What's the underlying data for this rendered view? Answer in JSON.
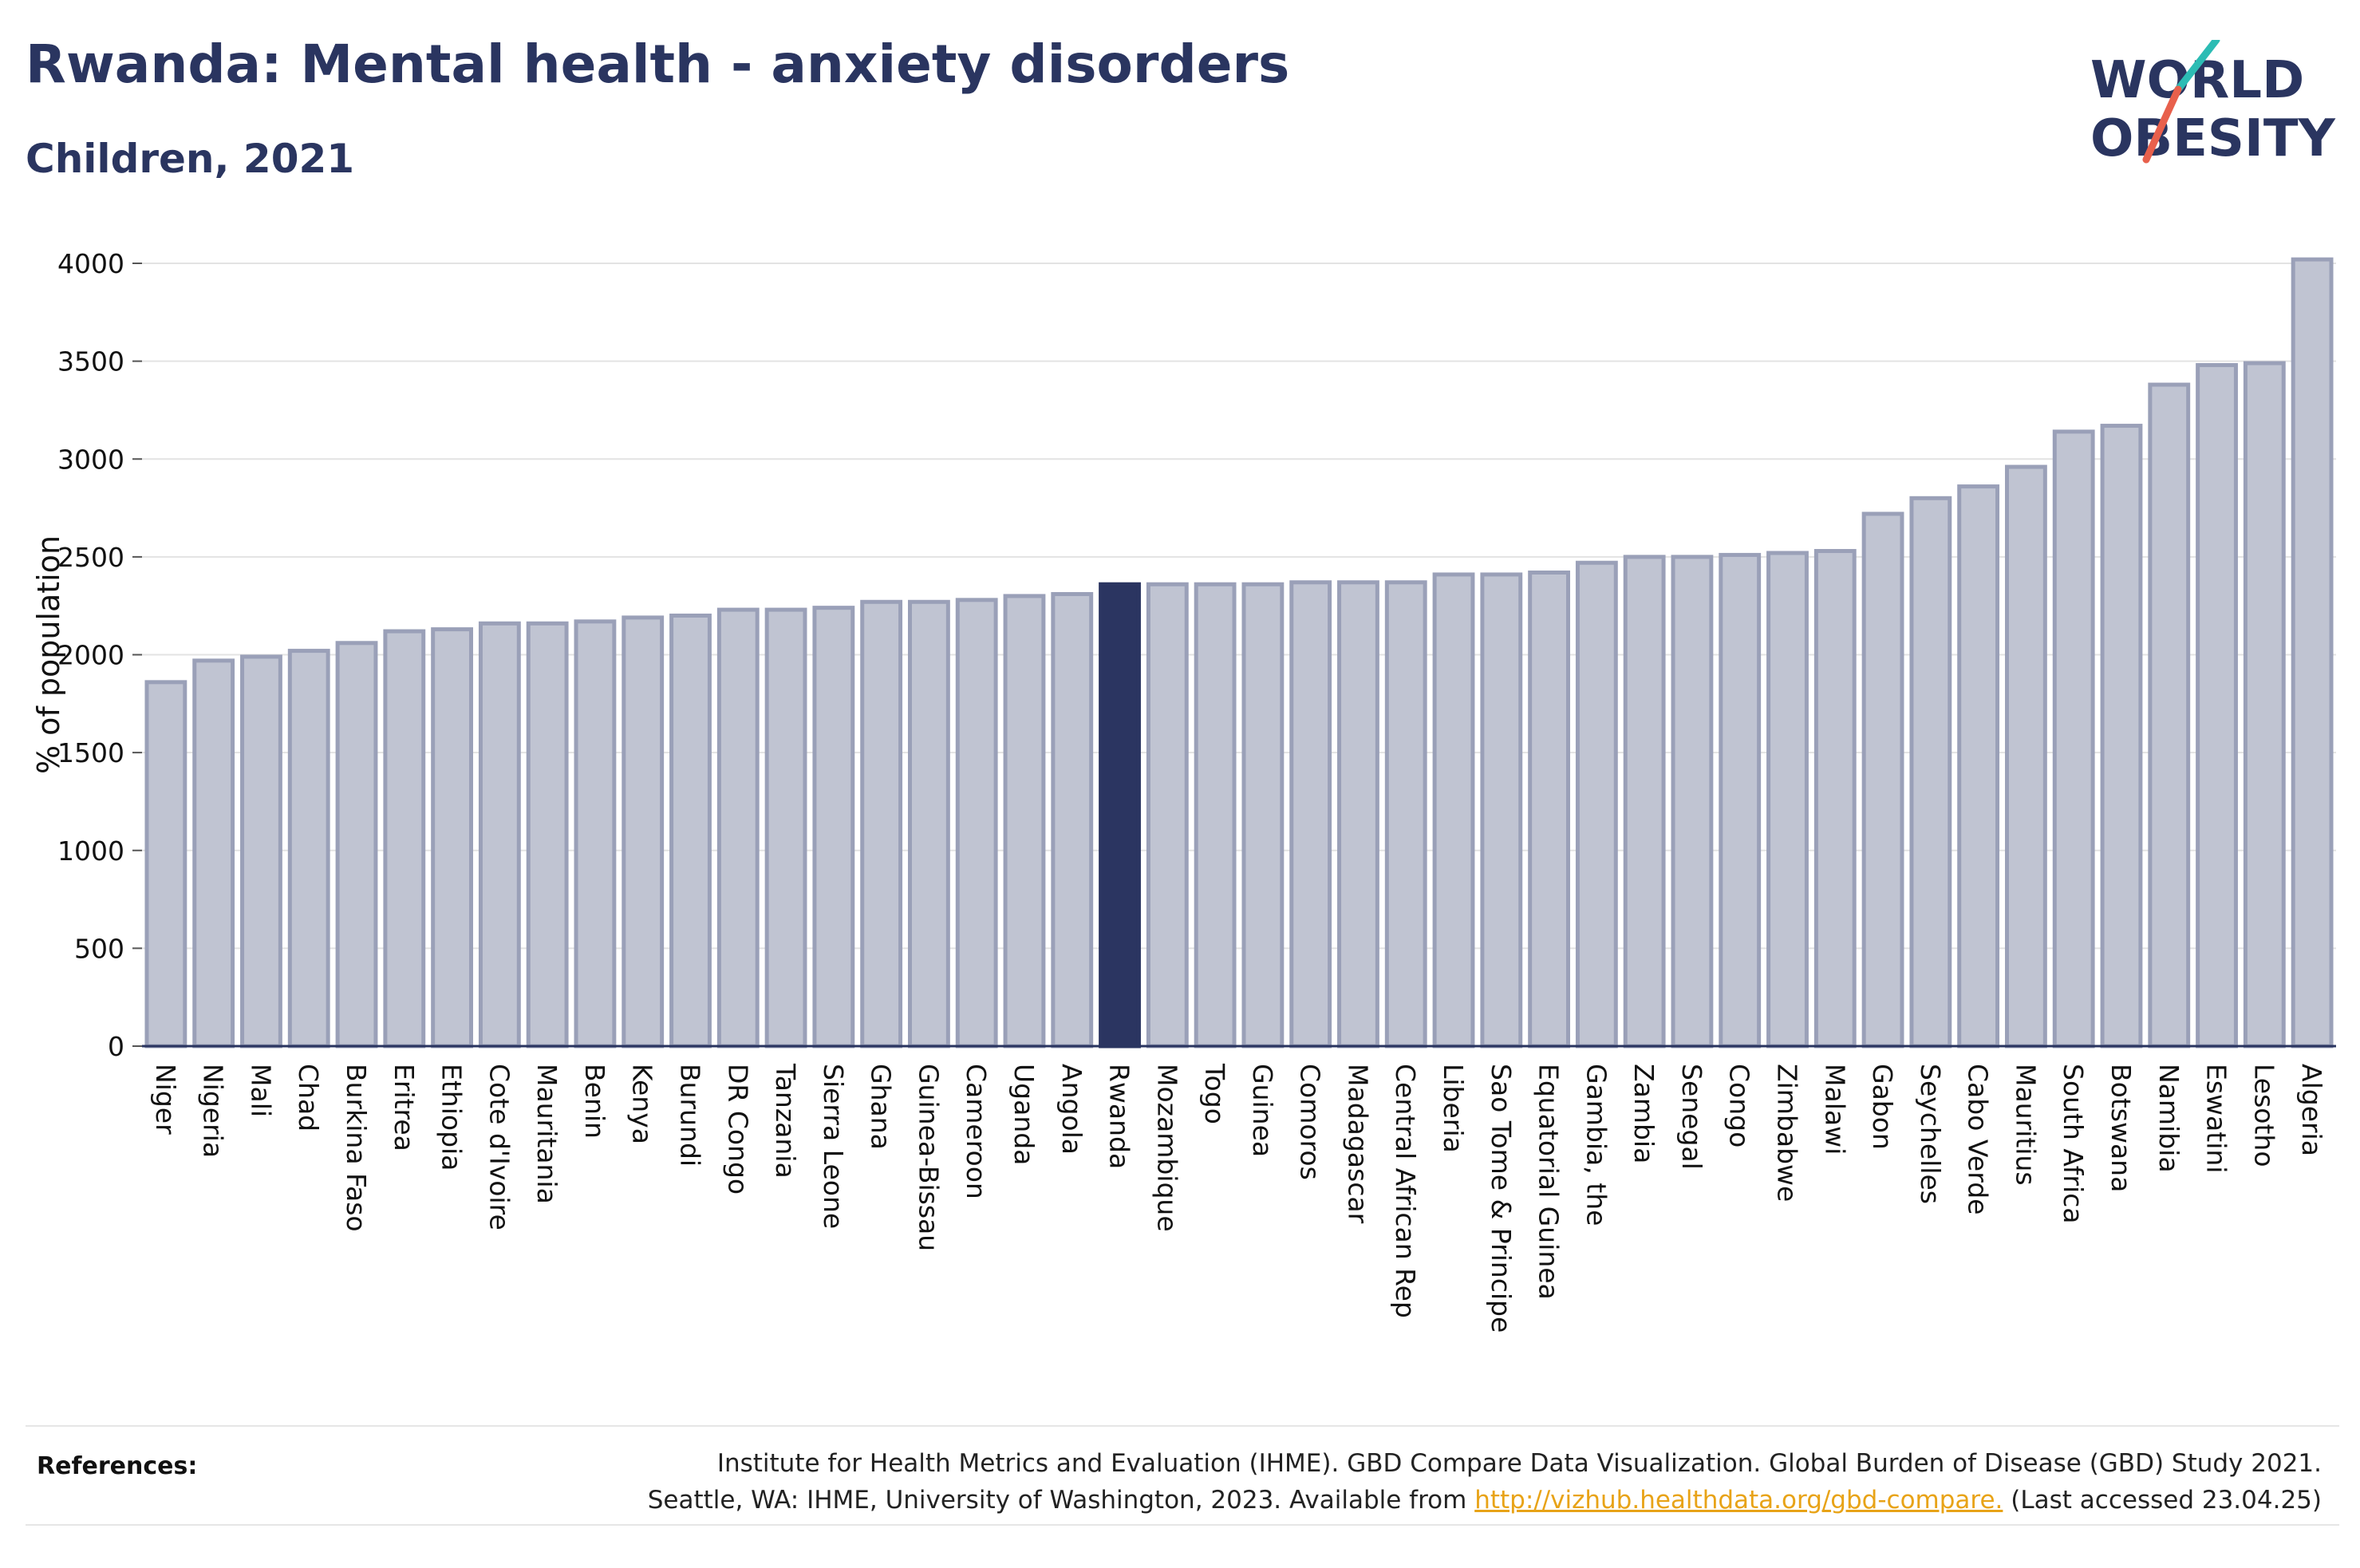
{
  "title": "Rwanda: Mental health - anxiety disorders",
  "subtitle": "Children, 2021",
  "logo": {
    "line1": "WORLD",
    "line2": "OBESITY"
  },
  "colors": {
    "highlight": "#2b3561",
    "bar_fill": "#c0c4d2",
    "bar_stroke": "#9aa0b8",
    "text": "#2a3560"
  },
  "chart_data": {
    "type": "bar",
    "ylabel": "% of population",
    "ylim": [
      0,
      4000
    ],
    "yticks": [
      0,
      500,
      1000,
      1500,
      2000,
      2500,
      3000,
      3500,
      4000
    ],
    "highlight": "Rwanda",
    "categories": [
      "Niger",
      "Nigeria",
      "Mali",
      "Chad",
      "Burkina Faso",
      "Eritrea",
      "Ethiopia",
      "Cote d'Ivoire",
      "Mauritania",
      "Benin",
      "Kenya",
      "Burundi",
      "DR Congo",
      "Tanzania",
      "Sierra Leone",
      "Ghana",
      "Guinea-Bissau",
      "Cameroon",
      "Uganda",
      "Angola",
      "Rwanda",
      "Mozambique",
      "Togo",
      "Guinea",
      "Comoros",
      "Madagascar",
      "Central African Rep",
      "Liberia",
      "Sao Tome & Principe",
      "Equatorial Guinea",
      "Gambia, the",
      "Zambia",
      "Senegal",
      "Congo",
      "Zimbabwe",
      "Malawi",
      "Gabon",
      "Seychelles",
      "Cabo Verde",
      "Mauritius",
      "South Africa",
      "Botswana",
      "Namibia",
      "Eswatini",
      "Lesotho",
      "Algeria"
    ],
    "values": [
      1860,
      1970,
      1990,
      2020,
      2060,
      2120,
      2130,
      2160,
      2160,
      2170,
      2190,
      2200,
      2230,
      2230,
      2240,
      2270,
      2270,
      2280,
      2300,
      2310,
      2360,
      2360,
      2360,
      2360,
      2370,
      2370,
      2370,
      2410,
      2410,
      2420,
      2470,
      2500,
      2500,
      2510,
      2520,
      2530,
      2720,
      2800,
      2860,
      2960,
      3140,
      3170,
      3380,
      3480,
      3490,
      4020
    ]
  },
  "references": {
    "label": "References:",
    "line1": "Institute for Health Metrics and Evaluation (IHME). GBD Compare Data Visualization. Global Burden of Disease (GBD) Study 2021.",
    "line2_prefix": "Seattle, WA: IHME, University of Washington, 2023. Available from ",
    "link": "http://vizhub.healthdata.org/gbd-compare.",
    "line2_suffix": " (Last accessed 23.04.25)"
  }
}
